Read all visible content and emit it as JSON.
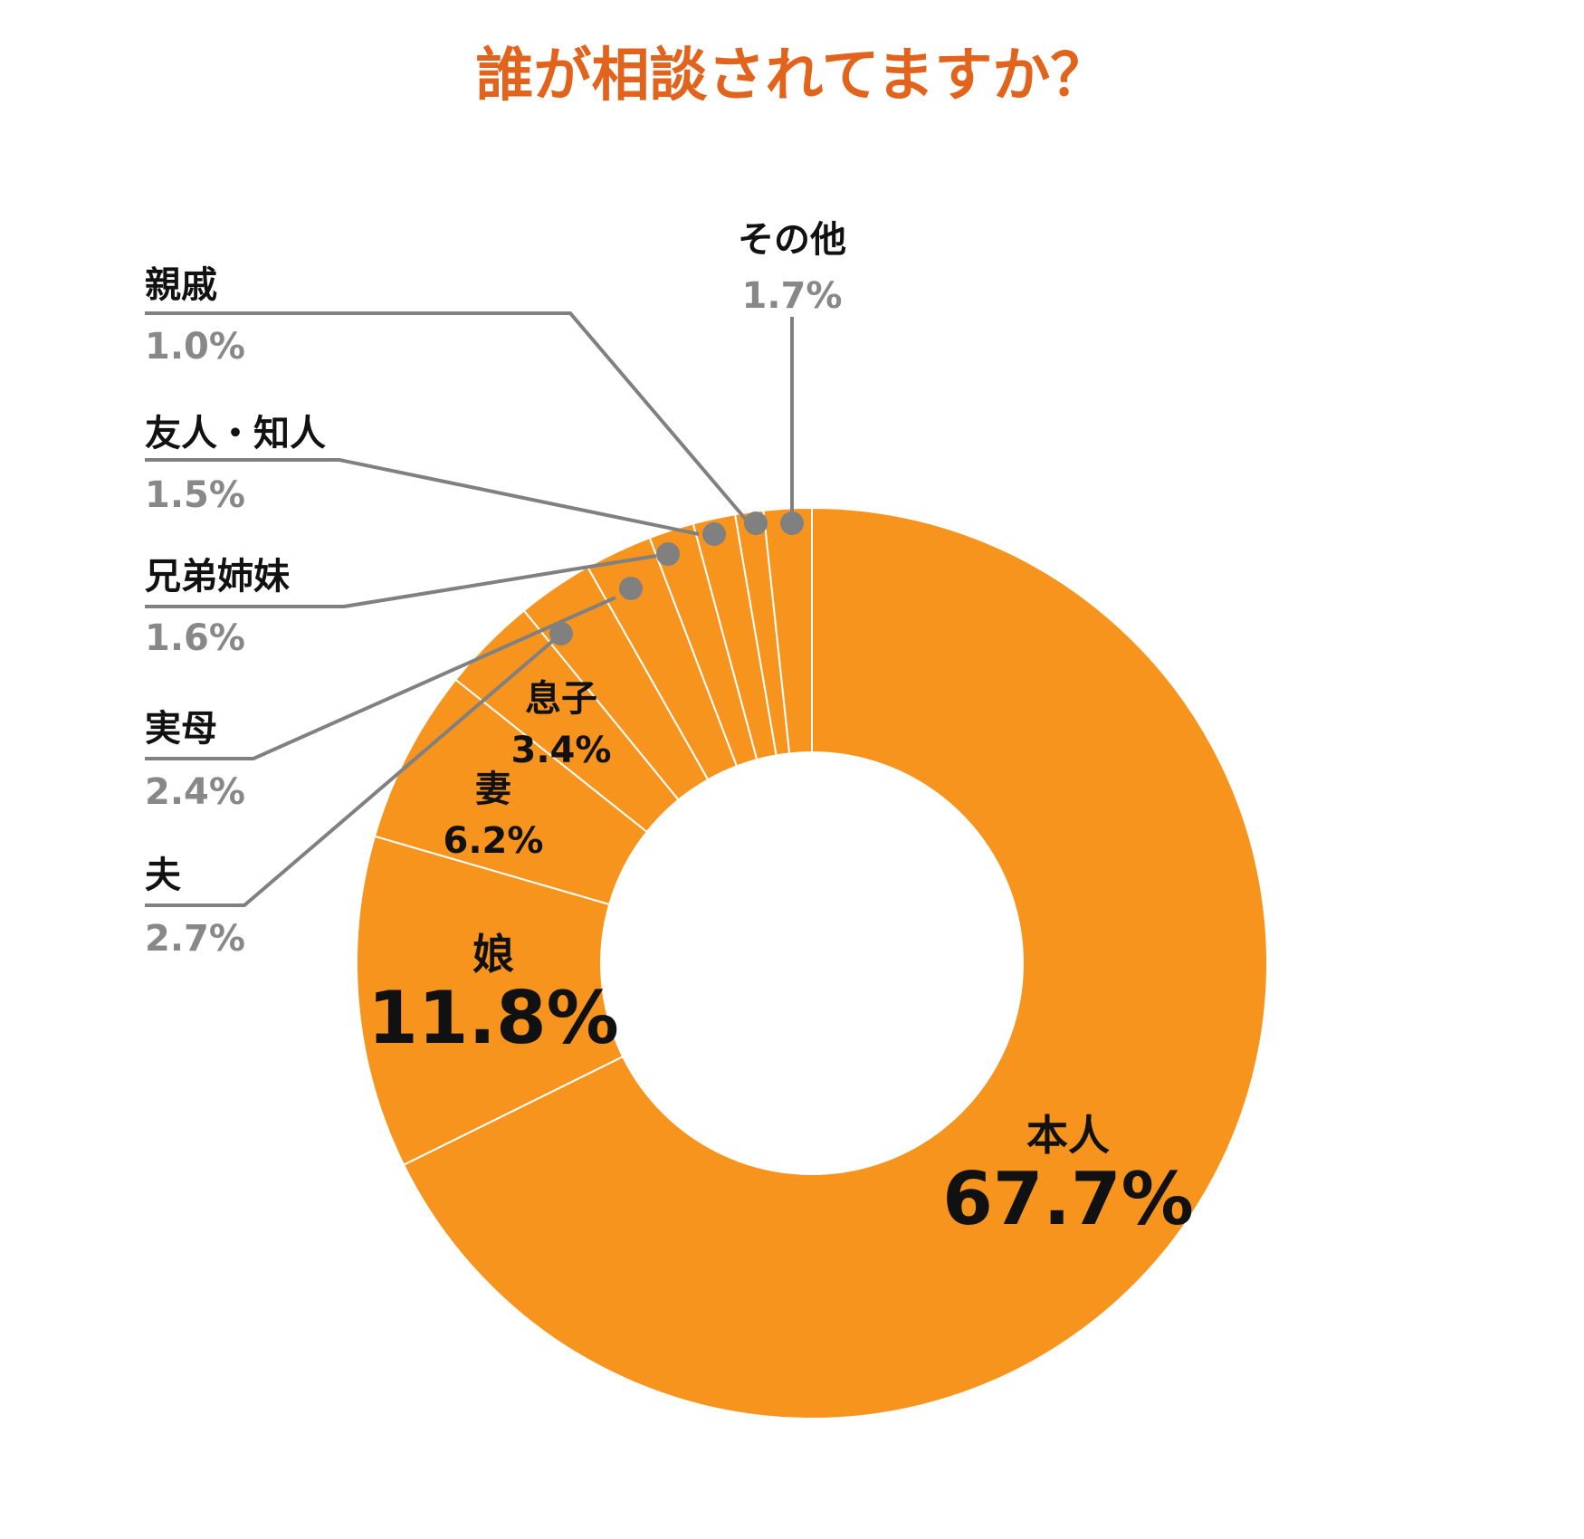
{
  "title": "誰が相談されてますか？",
  "colors": {
    "accent": "#f7941d",
    "title": "#e2631b",
    "leader": "#808080",
    "label": "#111111",
    "value_gray": "#888888",
    "divider": "#ffffff"
  },
  "chart_data": {
    "type": "pie",
    "donut": true,
    "title": "誰が相談されてますか？",
    "unit": "%",
    "slices": [
      {
        "label": "本人",
        "value": 67.7,
        "display": "67.7%"
      },
      {
        "label": "娘",
        "value": 11.8,
        "display": "11.8%"
      },
      {
        "label": "妻",
        "value": 6.2,
        "display": "6.2%"
      },
      {
        "label": "息子",
        "value": 3.4,
        "display": "3.4%"
      },
      {
        "label": "夫",
        "value": 2.7,
        "display": "2.7%"
      },
      {
        "label": "実母",
        "value": 2.4,
        "display": "2.4%"
      },
      {
        "label": "兄弟姉妹",
        "value": 1.6,
        "display": "1.6%"
      },
      {
        "label": "友人・知人",
        "value": 1.5,
        "display": "1.5%"
      },
      {
        "label": "親戚",
        "value": 1.0,
        "display": "1.0%"
      },
      {
        "label": "その他",
        "value": 1.7,
        "display": "1.7%"
      }
    ]
  }
}
